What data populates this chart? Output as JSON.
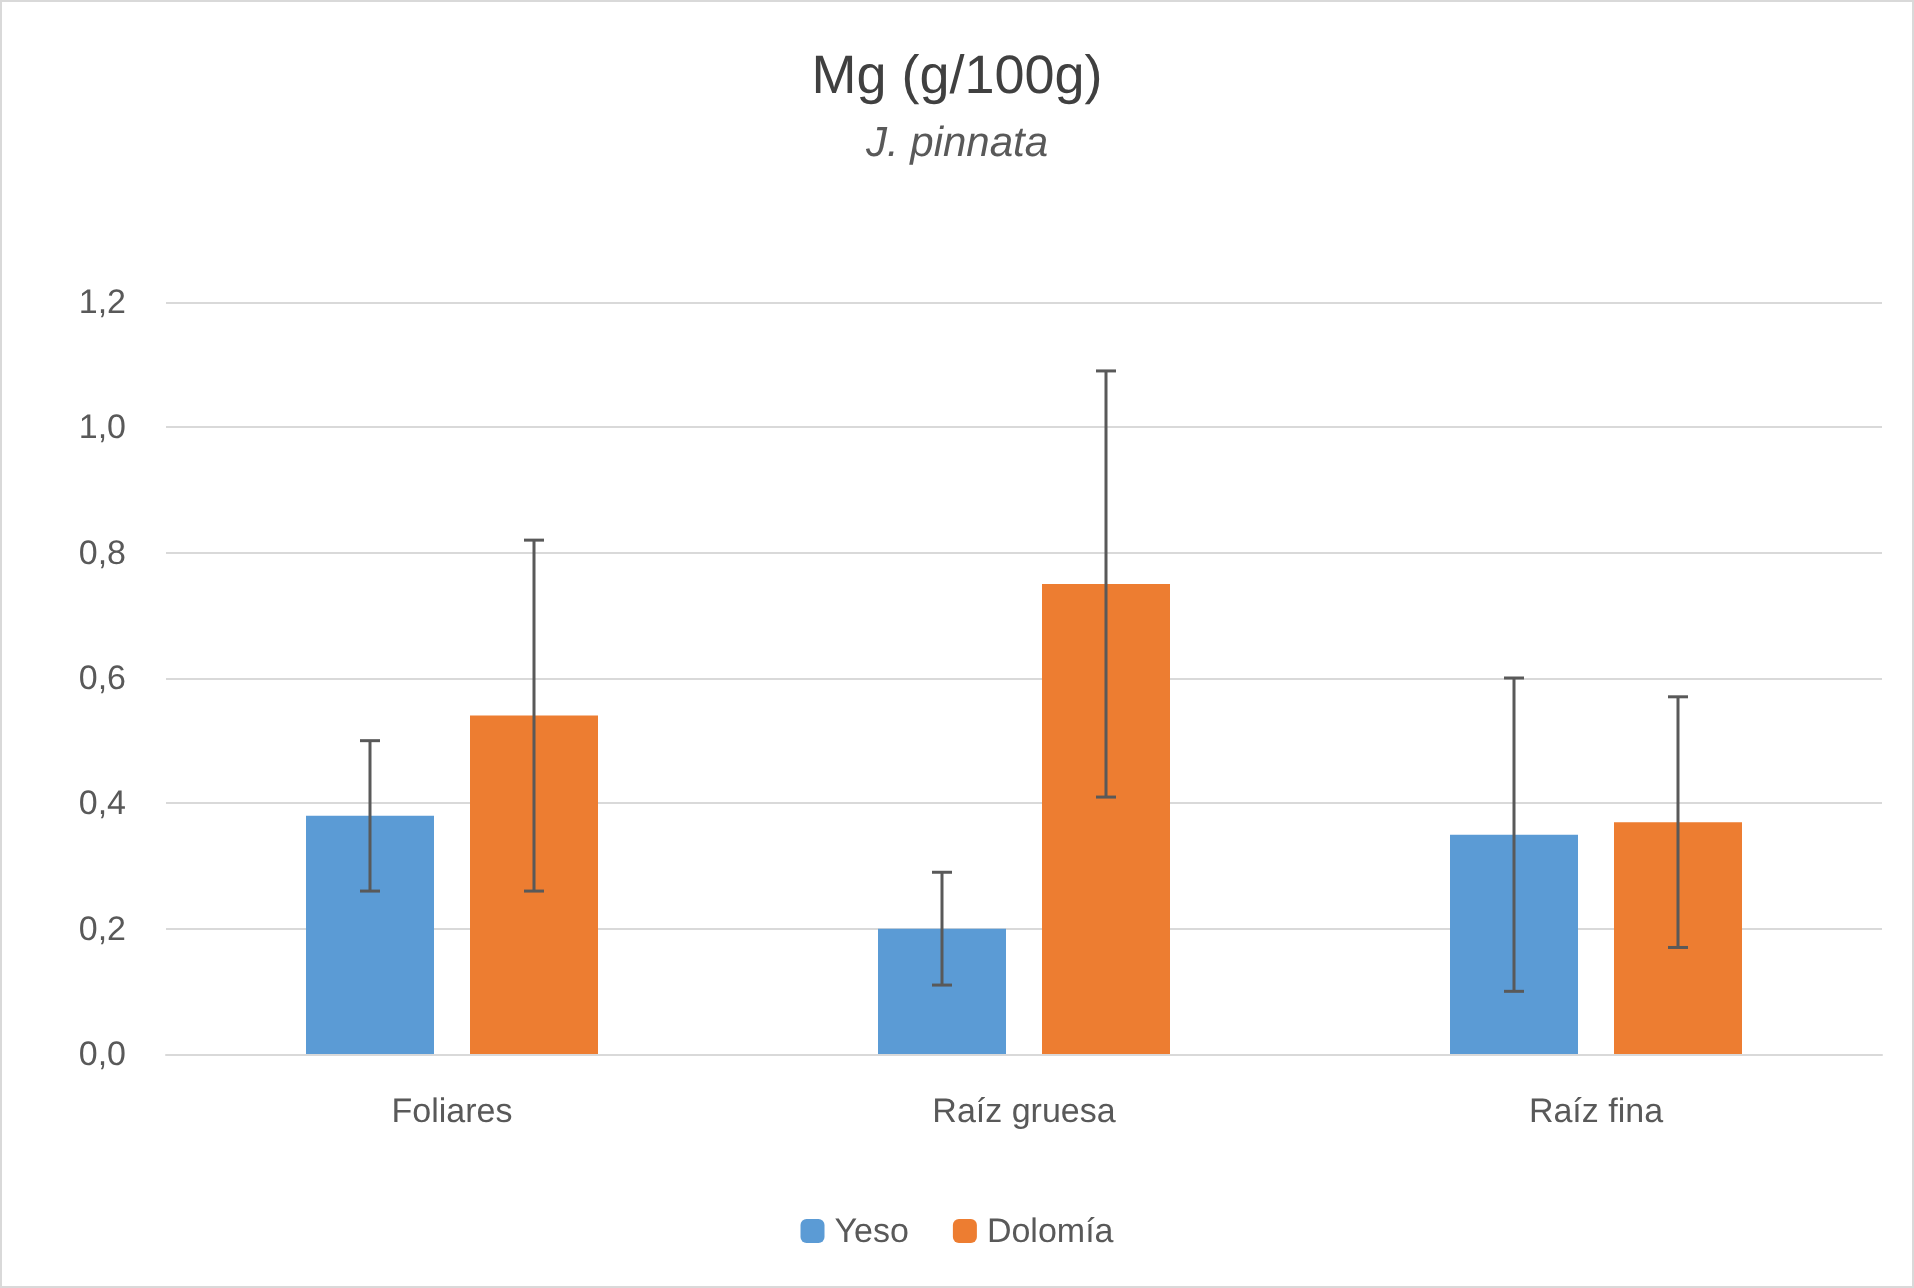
{
  "chart_data": {
    "type": "bar",
    "title": "Mg (g/100g)",
    "subtitle": "J. pinnata",
    "categories": [
      "Foliares",
      "Raíz gruesa",
      "Raíz fina"
    ],
    "series": [
      {
        "name": "Yeso",
        "color": "#5b9bd5",
        "values": [
          0.38,
          0.2,
          0.35
        ],
        "errors": [
          0.12,
          0.09,
          0.25
        ]
      },
      {
        "name": "Dolomía",
        "color": "#ed7d31",
        "values": [
          0.54,
          0.75,
          0.37
        ],
        "errors": [
          0.28,
          0.34,
          0.2
        ]
      }
    ],
    "ylim": [
      0,
      1.2
    ],
    "yticks": [
      {
        "value": 0,
        "label": "0,0"
      },
      {
        "value": 0.2,
        "label": "0,2"
      },
      {
        "value": 0.4,
        "label": "0,4"
      },
      {
        "value": 0.6,
        "label": "0,6"
      },
      {
        "value": 0.8,
        "label": "0,8"
      },
      {
        "value": 1.0,
        "label": "1,0"
      },
      {
        "value": 1.2,
        "label": "1,2"
      }
    ],
    "grid": "y",
    "legend": "bottom"
  }
}
